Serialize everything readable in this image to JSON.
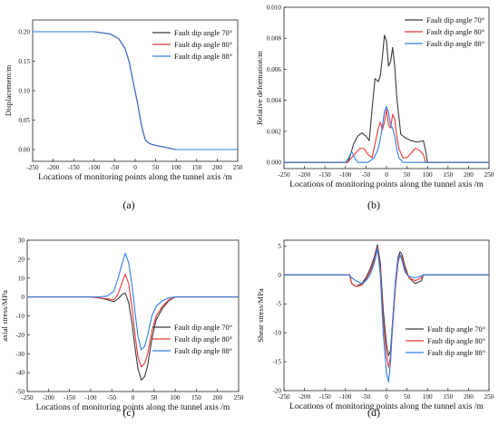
{
  "legend_labels": [
    "Fault dip angle 70°",
    "Fault dip angle 80°",
    "Fault dip angle 88°"
  ],
  "colors": {
    "a70": "#3a3a3a",
    "a80": "#e8393a",
    "a88": "#2f7de1"
  },
  "panel_labels": [
    "(a)",
    "(b)",
    "(c)",
    "(d)"
  ],
  "chart_data": [
    {
      "type": "line",
      "xlabel": "Locations of monitoring points along the tunnel axis /m",
      "ylabel": "Displacement/m",
      "xlim": [
        -250,
        250
      ],
      "ylim": [
        -0.02,
        0.22
      ],
      "xticks": [
        "-250",
        "-200",
        "-150",
        "-100",
        "-50",
        "0",
        "50",
        "100",
        "150",
        "200",
        "250"
      ],
      "yticks": [
        "0.00",
        "0.05",
        "0.10",
        "0.15",
        "0.20"
      ],
      "legend_position": "top-right",
      "series": [
        {
          "name": "Fault dip angle 70°",
          "x": [
            -250,
            -100,
            -60,
            -40,
            -25,
            -15,
            -5,
            0,
            5,
            10,
            15,
            20,
            25,
            35,
            50,
            100,
            250
          ],
          "y": [
            0.2,
            0.2,
            0.196,
            0.188,
            0.172,
            0.15,
            0.115,
            0.098,
            0.082,
            0.062,
            0.042,
            0.028,
            0.016,
            0.01,
            0.007,
            0,
            0
          ]
        },
        {
          "name": "Fault dip angle 80°",
          "x": [
            -250,
            -100,
            -60,
            -40,
            -25,
            -15,
            -5,
            0,
            5,
            10,
            15,
            20,
            25,
            35,
            50,
            100,
            250
          ],
          "y": [
            0.2,
            0.2,
            0.196,
            0.188,
            0.172,
            0.15,
            0.115,
            0.098,
            0.082,
            0.062,
            0.042,
            0.028,
            0.016,
            0.01,
            0.007,
            0,
            0
          ]
        },
        {
          "name": "Fault dip angle 88°",
          "x": [
            -250,
            -100,
            -60,
            -40,
            -25,
            -15,
            -5,
            0,
            5,
            10,
            15,
            20,
            25,
            35,
            50,
            100,
            250
          ],
          "y": [
            0.2,
            0.2,
            0.196,
            0.188,
            0.172,
            0.15,
            0.115,
            0.098,
            0.082,
            0.062,
            0.042,
            0.028,
            0.016,
            0.01,
            0.007,
            0,
            0
          ]
        }
      ]
    },
    {
      "type": "line",
      "xlabel": "Locations of monitoring points along the tunnel axis /m",
      "ylabel": "Relative deformation/m",
      "xlim": [
        -250,
        250
      ],
      "ylim": [
        -0.0004,
        0.01
      ],
      "xticks": [
        "-250",
        "-200",
        "-150",
        "-100",
        "-50",
        "0",
        "50",
        "100",
        "150",
        "200",
        "250"
      ],
      "yticks": [
        "0.000",
        "0.002",
        "0.004",
        "0.006",
        "0.008",
        "0.010"
      ],
      "legend_position": "top-right",
      "series": [
        {
          "name": "Fault dip angle 70°",
          "x": [
            -250,
            -95,
            -90,
            -80,
            -70,
            -60,
            -50,
            -42,
            -35,
            -28,
            -20,
            -15,
            -10,
            -5,
            0,
            5,
            10,
            15,
            20,
            25,
            30,
            35,
            45,
            60,
            75,
            90,
            95,
            100,
            250
          ],
          "y": [
            0,
            0,
            0.0003,
            0.0012,
            0.0017,
            0.0019,
            0.0017,
            0.0014,
            0.0035,
            0.0054,
            0.0052,
            0.0056,
            0.0068,
            0.0082,
            0.0078,
            0.0062,
            0.0065,
            0.0074,
            0.0062,
            0.0042,
            0.003,
            0.0018,
            0.0016,
            0.0014,
            0.0013,
            0.0014,
            0.0008,
            0,
            0
          ]
        },
        {
          "name": "Fault dip angle 80°",
          "x": [
            -250,
            -95,
            -85,
            -75,
            -65,
            -55,
            -45,
            -35,
            -28,
            -20,
            -15,
            -10,
            -5,
            0,
            5,
            10,
            15,
            20,
            25,
            30,
            40,
            50,
            60,
            70,
            80,
            90,
            95,
            250
          ],
          "y": [
            0,
            0,
            0.0003,
            0.0006,
            0.0009,
            0.0009,
            0.0005,
            0.0003,
            0.0012,
            0.0022,
            0.0026,
            0.0021,
            0.0026,
            0.0034,
            0.0024,
            0.0022,
            0.0031,
            0.0028,
            0.0017,
            0.0009,
            0.0003,
            0.0003,
            0.0006,
            0.0009,
            0.0008,
            0.0005,
            0,
            0
          ]
        },
        {
          "name": "Fault dip angle 88°",
          "x": [
            -250,
            -100,
            -92,
            -85,
            -78,
            -70,
            -60,
            -45,
            -30,
            -20,
            -15,
            -10,
            -5,
            0,
            5,
            10,
            15,
            20,
            25,
            30,
            40,
            50,
            70,
            250
          ],
          "y": [
            0,
            0,
            0.0003,
            0.0007,
            0.0003,
            0,
            0,
            0,
            0.0003,
            0.0009,
            0.0015,
            0.0023,
            0.0033,
            0.0036,
            0.0032,
            0.0024,
            0.0022,
            0.0017,
            0.0009,
            0.0003,
            0,
            0,
            0,
            0
          ]
        }
      ]
    },
    {
      "type": "line",
      "xlabel": "Locations of monitoring points along the tunnel axis /m",
      "ylabel": "axial stress/MPa",
      "xlim": [
        -250,
        250
      ],
      "ylim": [
        -50,
        30
      ],
      "xticks": [
        "-250",
        "-200",
        "-150",
        "-100",
        "-50",
        "0",
        "50",
        "100",
        "150",
        "200",
        "250"
      ],
      "yticks": [
        "-50",
        "-40",
        "-30",
        "-20",
        "-10",
        "0",
        "10",
        "20",
        "30"
      ],
      "legend_position": "bottom-right",
      "series": [
        {
          "name": "Fault dip angle 70°",
          "x": [
            -250,
            -100,
            -80,
            -60,
            -45,
            -35,
            -25,
            -18,
            -10,
            -2,
            5,
            12,
            20,
            28,
            35,
            45,
            55,
            70,
            85,
            100,
            250
          ],
          "y": [
            0,
            0,
            -0.5,
            -1.5,
            -2.5,
            -1,
            1.5,
            2,
            -3,
            -14,
            -27,
            -38,
            -44,
            -42,
            -36,
            -22,
            -12,
            -6,
            -2,
            0,
            0
          ]
        },
        {
          "name": "Fault dip angle 80°",
          "x": [
            -250,
            -100,
            -80,
            -60,
            -45,
            -35,
            -25,
            -18,
            -10,
            -2,
            5,
            12,
            20,
            28,
            35,
            45,
            55,
            70,
            85,
            100,
            250
          ],
          "y": [
            0,
            0,
            -0.5,
            -1,
            -1.5,
            1.5,
            8,
            12,
            7,
            -6,
            -20,
            -32,
            -37,
            -35,
            -30,
            -18,
            -10,
            -5,
            -1.5,
            0,
            0
          ]
        },
        {
          "name": "Fault dip angle 88°",
          "x": [
            -250,
            -100,
            -80,
            -60,
            -45,
            -35,
            -25,
            -18,
            -10,
            -2,
            5,
            12,
            20,
            28,
            35,
            45,
            55,
            70,
            85,
            100,
            250
          ],
          "y": [
            0,
            0,
            0,
            0.5,
            3,
            10,
            18,
            23,
            18,
            6,
            -8,
            -21,
            -28,
            -26,
            -20,
            -10,
            -5,
            -2,
            -0.5,
            0,
            0
          ]
        }
      ]
    },
    {
      "type": "line",
      "xlabel": "Locations of monitoring points along the tunnel axis /m",
      "ylabel": "Shear stress/MPa",
      "xlim": [
        -250,
        250
      ],
      "ylim": [
        -20,
        6
      ],
      "xticks": [
        "-250",
        "-200",
        "-150",
        "-100",
        "-50",
        "0",
        "50",
        "100",
        "150",
        "200",
        "250"
      ],
      "yticks": [
        "-20",
        "-15",
        "-10",
        "-5",
        "0",
        "5"
      ],
      "legend_position": "bottom-right",
      "series": [
        {
          "name": "Fault dip angle 70°",
          "x": [
            -250,
            -90,
            -85,
            -75,
            -60,
            -50,
            -40,
            -30,
            -22,
            -15,
            -8,
            0,
            5,
            10,
            15,
            22,
            28,
            33,
            38,
            45,
            55,
            70,
            85,
            90,
            250
          ],
          "y": [
            0,
            0,
            -1.5,
            -2,
            -1.5,
            -0.5,
            1,
            3,
            5.2,
            2,
            -6,
            -12,
            -14,
            -13,
            -8,
            -1,
            3,
            4,
            3.5,
            1.5,
            -0.5,
            -1.5,
            -1,
            0,
            0
          ]
        },
        {
          "name": "Fault dip angle 80°",
          "x": [
            -250,
            -90,
            -85,
            -75,
            -60,
            -50,
            -40,
            -30,
            -22,
            -15,
            -8,
            0,
            5,
            10,
            15,
            22,
            28,
            33,
            38,
            45,
            55,
            70,
            85,
            90,
            250
          ],
          "y": [
            0,
            0,
            -1.5,
            -2,
            -1.8,
            -0.8,
            0.5,
            2.5,
            4.8,
            1,
            -8,
            -14,
            -16,
            -14,
            -9,
            -2,
            2,
            3.5,
            3,
            1,
            -0.5,
            -1,
            -0.5,
            0,
            0
          ]
        },
        {
          "name": "Fault dip angle 88°",
          "x": [
            -250,
            -90,
            -85,
            -75,
            -60,
            -50,
            -40,
            -30,
            -22,
            -15,
            -8,
            0,
            5,
            10,
            15,
            22,
            28,
            33,
            38,
            45,
            55,
            70,
            85,
            90,
            250
          ],
          "y": [
            0,
            0,
            -0.5,
            -1,
            -1.5,
            -1,
            0,
            2,
            4.5,
            0,
            -10,
            -17,
            -18.5,
            -15,
            -8,
            -1,
            2.5,
            3.5,
            2.5,
            0.5,
            -0.3,
            -0.5,
            -0.2,
            0,
            0
          ]
        }
      ]
    }
  ]
}
